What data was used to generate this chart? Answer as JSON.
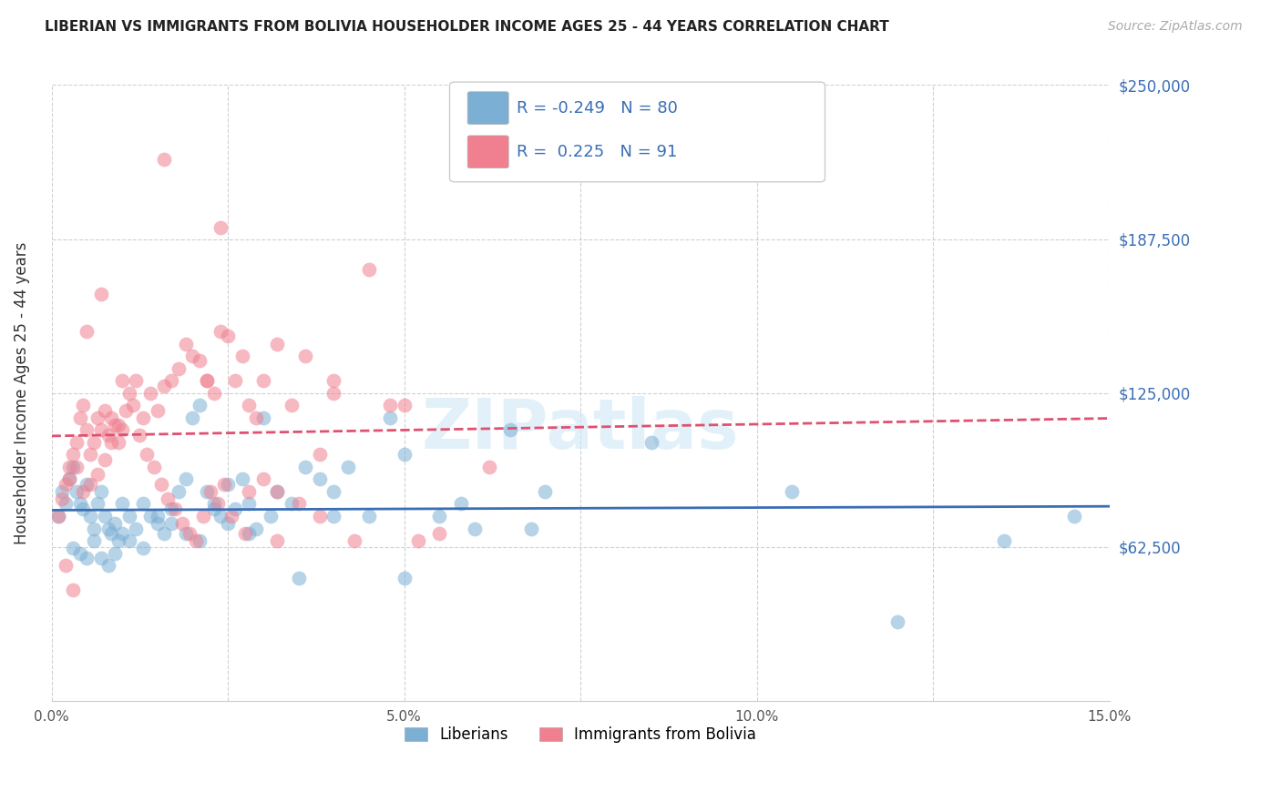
{
  "title": "LIBERIAN VS IMMIGRANTS FROM BOLIVIA HOUSEHOLDER INCOME AGES 25 - 44 YEARS CORRELATION CHART",
  "source": "Source: ZipAtlas.com",
  "ylabel": "Householder Income Ages 25 - 44 years",
  "ytick_labels": [
    "$62,500",
    "$125,000",
    "$187,500",
    "$250,000"
  ],
  "ytick_values": [
    62500,
    125000,
    187500,
    250000
  ],
  "xmin": 0.0,
  "xmax": 15.0,
  "ymin": 0,
  "ymax": 250000,
  "legend_label_blue": "Liberians",
  "legend_label_pink": "Immigrants from Bolivia",
  "r_blue": -0.249,
  "n_blue": 80,
  "r_pink": 0.225,
  "n_pink": 91,
  "blue_color": "#7bafd4",
  "pink_color": "#f08090",
  "blue_line_color": "#3a6eb5",
  "pink_line_color": "#e05070",
  "watermark": "ZIPatlas",
  "blue_x": [
    0.1,
    0.15,
    0.2,
    0.25,
    0.3,
    0.35,
    0.4,
    0.45,
    0.5,
    0.55,
    0.6,
    0.65,
    0.7,
    0.75,
    0.8,
    0.85,
    0.9,
    0.95,
    1.0,
    1.1,
    1.2,
    1.3,
    1.4,
    1.5,
    1.6,
    1.7,
    1.8,
    1.9,
    2.0,
    2.1,
    2.2,
    2.3,
    2.4,
    2.5,
    2.6,
    2.7,
    2.8,
    2.9,
    3.0,
    3.2,
    3.4,
    3.6,
    3.8,
    4.0,
    4.2,
    4.5,
    4.8,
    5.0,
    5.5,
    6.0,
    6.5,
    7.0,
    0.3,
    0.4,
    0.5,
    0.6,
    0.7,
    0.8,
    0.9,
    1.0,
    1.1,
    1.3,
    1.5,
    1.7,
    1.9,
    2.1,
    2.3,
    2.5,
    2.8,
    3.1,
    3.5,
    4.0,
    5.0,
    5.8,
    6.8,
    8.5,
    10.5,
    12.0,
    13.5,
    14.5
  ],
  "blue_y": [
    75000,
    85000,
    80000,
    90000,
    95000,
    85000,
    80000,
    78000,
    88000,
    75000,
    70000,
    80000,
    85000,
    75000,
    70000,
    68000,
    72000,
    65000,
    80000,
    75000,
    70000,
    80000,
    75000,
    72000,
    68000,
    78000,
    85000,
    90000,
    115000,
    120000,
    85000,
    80000,
    75000,
    88000,
    78000,
    90000,
    80000,
    70000,
    115000,
    85000,
    80000,
    95000,
    90000,
    85000,
    95000,
    75000,
    115000,
    100000,
    75000,
    70000,
    110000,
    85000,
    62000,
    60000,
    58000,
    65000,
    58000,
    55000,
    60000,
    68000,
    65000,
    62000,
    75000,
    72000,
    68000,
    65000,
    78000,
    72000,
    68000,
    75000,
    50000,
    75000,
    50000,
    80000,
    70000,
    105000,
    85000,
    32000,
    65000,
    75000
  ],
  "pink_x": [
    0.1,
    0.15,
    0.2,
    0.25,
    0.3,
    0.35,
    0.4,
    0.45,
    0.5,
    0.55,
    0.6,
    0.65,
    0.7,
    0.75,
    0.8,
    0.85,
    0.9,
    0.95,
    1.0,
    1.1,
    1.2,
    1.3,
    1.4,
    1.5,
    1.6,
    1.7,
    1.8,
    1.9,
    2.0,
    2.1,
    2.2,
    2.3,
    2.4,
    2.5,
    2.6,
    2.7,
    2.8,
    2.9,
    3.0,
    3.2,
    3.4,
    3.6,
    3.8,
    4.0,
    4.5,
    5.0,
    0.25,
    0.35,
    0.45,
    0.55,
    0.65,
    0.75,
    0.85,
    0.95,
    1.05,
    1.15,
    1.25,
    1.35,
    1.45,
    1.55,
    1.65,
    1.75,
    1.85,
    1.95,
    2.05,
    2.15,
    2.25,
    2.35,
    2.45,
    2.55,
    2.75,
    3.0,
    3.2,
    3.5,
    3.8,
    4.0,
    4.3,
    0.2,
    0.3,
    0.5,
    0.7,
    2.2,
    1.6,
    2.4,
    3.2,
    4.8,
    5.2,
    5.5,
    6.2,
    2.8,
    1.0
  ],
  "pink_y": [
    75000,
    82000,
    88000,
    95000,
    100000,
    105000,
    115000,
    120000,
    110000,
    100000,
    105000,
    115000,
    110000,
    118000,
    108000,
    115000,
    112000,
    105000,
    130000,
    125000,
    130000,
    115000,
    125000,
    118000,
    128000,
    130000,
    135000,
    145000,
    140000,
    138000,
    130000,
    125000,
    150000,
    148000,
    130000,
    140000,
    120000,
    115000,
    130000,
    145000,
    120000,
    140000,
    100000,
    130000,
    175000,
    120000,
    90000,
    95000,
    85000,
    88000,
    92000,
    98000,
    105000,
    112000,
    118000,
    120000,
    108000,
    100000,
    95000,
    88000,
    82000,
    78000,
    72000,
    68000,
    65000,
    75000,
    85000,
    80000,
    88000,
    75000,
    68000,
    90000,
    85000,
    80000,
    75000,
    125000,
    65000,
    55000,
    45000,
    150000,
    165000,
    130000,
    220000,
    192000,
    65000,
    120000,
    65000,
    68000,
    95000,
    85000,
    110000
  ]
}
